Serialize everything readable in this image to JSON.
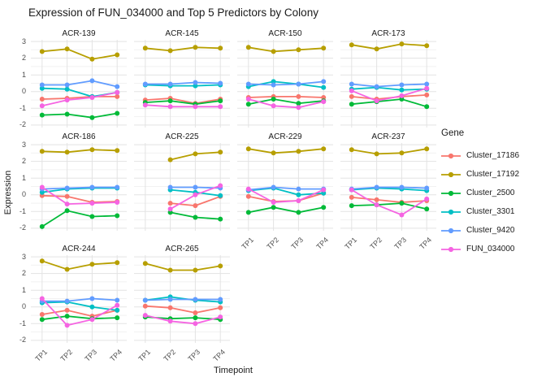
{
  "title": "Expression of FUN_034000 and Top 5 Predictors by Colony",
  "axes": {
    "x_label": "Timepoint",
    "y_label": "Expression",
    "x_ticks": [
      "TP1",
      "TP2",
      "TP3",
      "TP4"
    ],
    "y_ticks": [
      3,
      2,
      1,
      0,
      -1,
      -2
    ]
  },
  "legend": {
    "title": "Gene",
    "entries": [
      {
        "label": "Cluster_17186",
        "color": "#F8766D"
      },
      {
        "label": "Cluster_17192",
        "color": "#B79F00"
      },
      {
        "label": "Cluster_2500",
        "color": "#00BA38"
      },
      {
        "label": "Cluster_3301",
        "color": "#00BFC4"
      },
      {
        "label": "Cluster_9420",
        "color": "#619CFF"
      },
      {
        "label": "FUN_034000",
        "color": "#F564E2"
      }
    ]
  },
  "style": {
    "major_grid_color": "#e3e3e3",
    "minor_grid_color": "#f1f1f1",
    "background": "#ffffff"
  },
  "chart_data": {
    "type": "line",
    "title": "Expression of FUN_034000 and Top 5 Predictors by Colony",
    "xlabel": "Timepoint",
    "ylabel": "Expression",
    "x": [
      "TP1",
      "TP2",
      "TP3",
      "TP4"
    ],
    "ylim": [
      -2,
      3
    ],
    "ylim_expanded": [
      -2.15,
      3.1
    ],
    "y_major_gridlines": [
      3,
      2,
      1,
      0,
      -1,
      -2
    ],
    "y_minor_gridlines": [
      2.5,
      1.5,
      0.5,
      -0.5,
      -1.5
    ],
    "legend_position": "right",
    "facets": [
      {
        "name": "ACR-139",
        "series": {
          "Cluster_17186": [
            -0.45,
            -0.4,
            -0.3,
            -0.3
          ],
          "Cluster_17192": [
            2.4,
            2.55,
            1.95,
            2.2
          ],
          "Cluster_2500": [
            -1.4,
            -1.35,
            -1.55,
            -1.3
          ],
          "Cluster_3301": [
            0.2,
            0.15,
            -0.3,
            -0.05
          ],
          "Cluster_9420": [
            0.4,
            0.4,
            0.65,
            0.3
          ],
          "FUN_034000": [
            -0.85,
            -0.5,
            -0.35,
            -0.05
          ]
        }
      },
      {
        "name": "ACR-145",
        "series": {
          "Cluster_17186": [
            -0.5,
            -0.4,
            -0.7,
            -0.45
          ],
          "Cluster_17192": [
            2.6,
            2.45,
            2.65,
            2.6
          ],
          "Cluster_2500": [
            -0.65,
            -0.55,
            -0.75,
            -0.55
          ],
          "Cluster_3301": [
            0.4,
            0.35,
            0.35,
            0.4
          ],
          "Cluster_9420": [
            0.45,
            0.45,
            0.55,
            0.5
          ],
          "FUN_034000": [
            -0.8,
            -0.9,
            -0.9,
            -0.9
          ]
        }
      },
      {
        "name": "ACR-150",
        "series": {
          "Cluster_17186": [
            -0.35,
            -0.3,
            -0.3,
            -0.35
          ],
          "Cluster_17192": [
            2.65,
            2.4,
            2.5,
            2.6
          ],
          "Cluster_2500": [
            -0.75,
            -0.45,
            -0.7,
            -0.55
          ],
          "Cluster_3301": [
            0.3,
            0.6,
            0.45,
            0.25
          ],
          "Cluster_9420": [
            0.45,
            0.4,
            0.45,
            0.6
          ],
          "FUN_034000": [
            -0.45,
            -0.85,
            -0.95,
            -0.6
          ]
        }
      },
      {
        "name": "ACR-173",
        "series": {
          "Cluster_17186": [
            -0.3,
            -0.45,
            -0.3,
            -0.2
          ],
          "Cluster_17192": [
            2.8,
            2.55,
            2.85,
            2.75
          ],
          "Cluster_2500": [
            -0.75,
            -0.6,
            -0.45,
            -0.9
          ],
          "Cluster_3301": [
            0.15,
            0.25,
            0.1,
            0.15
          ],
          "Cluster_9420": [
            0.45,
            0.3,
            0.4,
            0.45
          ],
          "FUN_034000": [
            0.05,
            -0.55,
            -0.25,
            0.2
          ]
        }
      },
      {
        "name": "ACR-186",
        "series": {
          "Cluster_17186": [
            -0.05,
            -0.1,
            -0.45,
            -0.4
          ],
          "Cluster_17192": [
            2.6,
            2.55,
            2.7,
            2.65
          ],
          "Cluster_2500": [
            -1.9,
            -0.95,
            -1.3,
            -1.25
          ],
          "Cluster_3301": [
            0.15,
            0.35,
            0.4,
            0.4
          ],
          "Cluster_9420": [
            0.35,
            0.4,
            0.45,
            0.45
          ],
          "FUN_034000": [
            0.45,
            -0.55,
            -0.5,
            -0.45
          ]
        }
      },
      {
        "name": "ACR-225",
        "series": {
          "Cluster_17186": [
            null,
            -0.5,
            -0.65,
            -0.1
          ],
          "Cluster_17192": [
            null,
            2.1,
            2.45,
            2.55
          ],
          "Cluster_2500": [
            null,
            -1.05,
            -1.35,
            -1.45
          ],
          "Cluster_3301": [
            null,
            0.3,
            0.15,
            -0.05
          ],
          "Cluster_9420": [
            null,
            0.45,
            0.45,
            0.4
          ],
          "FUN_034000": [
            null,
            -0.85,
            0.0,
            0.55
          ]
        }
      },
      {
        "name": "ACR-229",
        "series": {
          "Cluster_17186": [
            -0.1,
            -0.4,
            -0.35,
            0.1
          ],
          "Cluster_17192": [
            2.75,
            2.5,
            2.6,
            2.75
          ],
          "Cluster_2500": [
            -1.05,
            -0.75,
            -1.05,
            -0.75
          ],
          "Cluster_3301": [
            0.25,
            0.4,
            0.0,
            0.1
          ],
          "Cluster_9420": [
            0.3,
            0.45,
            0.35,
            0.35
          ],
          "FUN_034000": [
            0.35,
            -0.45,
            -0.35,
            0.3
          ]
        }
      },
      {
        "name": "ACR-237",
        "series": {
          "Cluster_17186": [
            -0.15,
            -0.3,
            -0.45,
            -0.35
          ],
          "Cluster_17192": [
            2.7,
            2.45,
            2.5,
            2.75
          ],
          "Cluster_2500": [
            -0.65,
            -0.6,
            -0.5,
            -0.85
          ],
          "Cluster_3301": [
            0.3,
            0.4,
            0.35,
            0.25
          ],
          "Cluster_9420": [
            0.35,
            0.45,
            0.45,
            0.4
          ],
          "FUN_034000": [
            0.3,
            -0.6,
            -1.2,
            -0.25
          ]
        }
      },
      {
        "name": "ACR-244",
        "series": {
          "Cluster_17186": [
            -0.45,
            -0.2,
            -0.55,
            -0.2
          ],
          "Cluster_17192": [
            2.75,
            2.25,
            2.55,
            2.65
          ],
          "Cluster_2500": [
            -0.75,
            -0.55,
            -0.7,
            -0.65
          ],
          "Cluster_3301": [
            0.25,
            0.3,
            0.0,
            -0.2
          ],
          "Cluster_9420": [
            0.35,
            0.35,
            0.5,
            0.4
          ],
          "FUN_034000": [
            0.5,
            -1.1,
            -0.75,
            0.1
          ]
        }
      },
      {
        "name": "ACR-265",
        "series": {
          "Cluster_17186": [
            0.05,
            -0.05,
            -0.35,
            -0.05
          ],
          "Cluster_17192": [
            2.6,
            2.2,
            2.2,
            2.45
          ],
          "Cluster_2500": [
            -0.6,
            -0.7,
            -0.65,
            -0.75
          ],
          "Cluster_3301": [
            0.4,
            0.6,
            0.4,
            0.3
          ],
          "Cluster_9420": [
            0.4,
            0.45,
            0.45,
            0.45
          ],
          "FUN_034000": [
            -0.5,
            -0.85,
            -1.0,
            -0.6
          ]
        }
      }
    ]
  }
}
